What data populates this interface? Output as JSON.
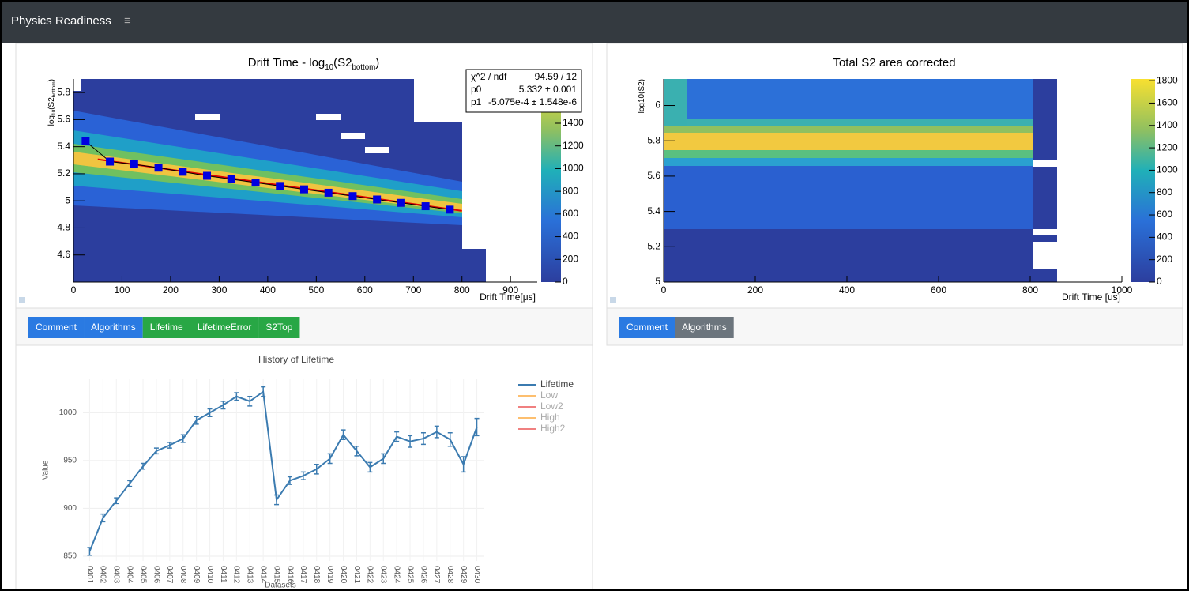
{
  "nav": {
    "title": "Physics Readiness",
    "menu": "≡"
  },
  "tabs_left": [
    "Comment",
    "Algorithms",
    "Lifetime",
    "LifetimeError",
    "S2Top"
  ],
  "tabs_right": [
    "Comment",
    "Algorithms"
  ],
  "chart_data": [
    {
      "type": "heatmap",
      "title_parts": [
        "Drift Time - log",
        "10",
        "(S2",
        "bottom",
        ")"
      ],
      "xlabel": "Drift Time[μs]",
      "ylabel_parts": [
        "log",
        "10",
        "(S2",
        "bottom",
        ")"
      ],
      "xlim": [
        0,
        955
      ],
      "xticks": [
        0,
        100,
        200,
        300,
        400,
        500,
        600,
        700,
        800,
        900
      ],
      "ylim": [
        4.4,
        5.9
      ],
      "yticks": [
        4.6,
        4.8,
        5,
        5.2,
        5.4,
        5.6,
        5.8
      ],
      "zlim": [
        0,
        1790
      ],
      "zticks": [
        0,
        200,
        400,
        600,
        800,
        1000,
        1200,
        1400
      ],
      "stats": [
        [
          "χ^2 / ndf",
          "94.59 / 12"
        ],
        [
          "p0",
          "5.332 ± 0.001"
        ],
        [
          "p1",
          "-5.075e-4 ± 1.548e-6"
        ]
      ],
      "fit": {
        "p0": 5.332,
        "p1": -0.0005075,
        "range": [
          50,
          800
        ]
      },
      "points": {
        "color": "#0000e0",
        "x": [
          25,
          75,
          125,
          175,
          225,
          275,
          325,
          375,
          425,
          475,
          525,
          575,
          625,
          675,
          725,
          775
        ],
        "values": [
          5.44,
          5.29,
          5.27,
          5.245,
          5.215,
          5.185,
          5.16,
          5.135,
          5.11,
          5.085,
          5.06,
          5.035,
          5.01,
          4.985,
          4.96,
          4.935
        ]
      }
    },
    {
      "type": "heatmap",
      "title_parts": [
        "Total S2 area corrected"
      ],
      "xlabel": "Drift Time [us]",
      "ylabel_parts": [
        "log10(S2)"
      ],
      "xlim": [
        0,
        1000
      ],
      "xticks": [
        0,
        200,
        400,
        600,
        800,
        1000
      ],
      "ylim": [
        5,
        6.15
      ],
      "yticks": [
        5,
        5.2,
        5.4,
        5.6,
        5.8,
        6
      ],
      "zlim": [
        0,
        1815
      ],
      "zticks": [
        0,
        200,
        400,
        600,
        800,
        1000,
        1200,
        1400,
        1600,
        1800
      ]
    },
    {
      "type": "line",
      "title": "History of Lifetime",
      "xlabel": "Datasets",
      "ylabel": "Value",
      "categories": [
        "0401",
        "0402",
        "0403",
        "0404",
        "0405",
        "0406",
        "0407",
        "0408",
        "0409",
        "0410",
        "0411",
        "0412",
        "0413",
        "0414",
        "0415",
        "0416",
        "0417",
        "0418",
        "0419",
        "0420",
        "0421",
        "0422",
        "0423",
        "0424",
        "0425",
        "0426",
        "0427",
        "0428",
        "0429",
        "0430"
      ],
      "ylim": [
        845,
        1035
      ],
      "yticks": [
        850,
        900,
        950,
        1000
      ],
      "grid": true,
      "series": [
        {
          "name": "Lifetime",
          "color": "#3b7bb0",
          "values": [
            855,
            890,
            908,
            926,
            944,
            960,
            966,
            973,
            992,
            1000,
            1008,
            1017,
            1012,
            1022,
            909,
            929,
            934,
            941,
            952,
            977,
            960,
            943,
            952,
            975,
            970,
            973,
            980,
            972,
            946,
            985
          ],
          "errors": [
            4,
            4,
            3,
            3,
            3,
            3,
            3,
            4,
            4,
            4,
            4,
            4,
            5,
            5,
            5,
            4,
            4,
            5,
            5,
            5,
            5,
            5,
            5,
            5,
            6,
            6,
            6,
            7,
            8,
            9
          ]
        },
        {
          "name": "Low",
          "color": "#fdbf6f"
        },
        {
          "name": "Low2",
          "color": "#f08080"
        },
        {
          "name": "High",
          "color": "#fdbf6f"
        },
        {
          "name": "High2",
          "color": "#f08080"
        }
      ]
    }
  ]
}
